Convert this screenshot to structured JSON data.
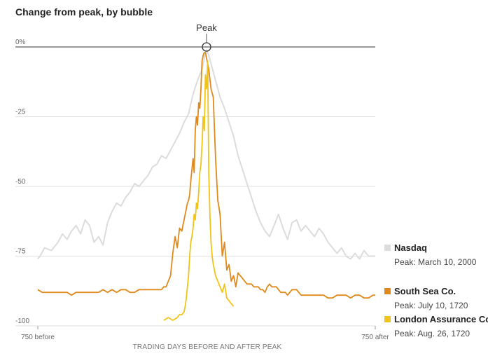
{
  "chart_data": {
    "type": "line",
    "title": "Change from peak, by bubble",
    "xlabel": "TRADING DAYS BEFORE AND AFTER PEAK",
    "ylabel": "",
    "xlim": [
      -750,
      750
    ],
    "ylim": [
      -100,
      0
    ],
    "x_tick_labels": [
      {
        "x": -750,
        "label": "750 before"
      },
      {
        "x": 750,
        "label": "750 after"
      }
    ],
    "y_ticks": [
      {
        "y": 0,
        "label": "0%"
      },
      {
        "y": -25,
        "label": "-25"
      },
      {
        "y": -50,
        "label": "-50"
      },
      {
        "y": -75,
        "label": "-75"
      },
      {
        "y": -100,
        "label": "-100"
      }
    ],
    "grid": true,
    "annotation": {
      "label": "Peak",
      "x": 0,
      "y": 0
    },
    "legend_position": "right",
    "series": [
      {
        "name": "Nasdaq",
        "peak_label": "Peak: March 10, 2000",
        "color": "#dcdcdc",
        "x": [
          -750,
          -740,
          -720,
          -690,
          -660,
          -640,
          -620,
          -600,
          -580,
          -560,
          -540,
          -520,
          -500,
          -480,
          -460,
          -440,
          -420,
          -400,
          -380,
          -360,
          -340,
          -320,
          -300,
          -280,
          -260,
          -240,
          -220,
          -200,
          -180,
          -160,
          -140,
          -120,
          -100,
          -80,
          -60,
          -40,
          -20,
          -10,
          0,
          10,
          20,
          40,
          60,
          80,
          100,
          120,
          140,
          160,
          180,
          200,
          220,
          240,
          260,
          280,
          300,
          320,
          340,
          360,
          380,
          400,
          420,
          440,
          460,
          480,
          500,
          520,
          540,
          560,
          580,
          600,
          620,
          640,
          660,
          680,
          700,
          720,
          740,
          750
        ],
        "y": [
          -76,
          -75,
          -72,
          -73,
          -70,
          -67,
          -69,
          -66,
          -64,
          -67,
          -62,
          -64,
          -70,
          -68,
          -71,
          -63,
          -59,
          -56,
          -57,
          -54,
          -52,
          -49,
          -50,
          -48,
          -46,
          -43,
          -42,
          -39,
          -40,
          -37,
          -34,
          -31,
          -27,
          -24,
          -17,
          -12,
          -8,
          -4,
          -1,
          -3,
          -6,
          -12,
          -18,
          -22,
          -27,
          -32,
          -39,
          -44,
          -49,
          -54,
          -59,
          -63,
          -66,
          -68,
          -64,
          -60,
          -65,
          -69,
          -63,
          -62,
          -66,
          -64,
          -66,
          -68,
          -65,
          -67,
          -70,
          -72,
          -74,
          -72,
          -75,
          -76,
          -74,
          -76,
          -73,
          -75,
          -75,
          -75
        ]
      },
      {
        "name": "South Sea Co.",
        "peak_label": "Peak: July 10, 1720",
        "color": "#e08a1c",
        "x": [
          -750,
          -730,
          -700,
          -680,
          -660,
          -640,
          -620,
          -600,
          -580,
          -560,
          -540,
          -520,
          -500,
          -480,
          -460,
          -440,
          -420,
          -400,
          -380,
          -360,
          -340,
          -320,
          -300,
          -280,
          -260,
          -240,
          -220,
          -200,
          -190,
          -180,
          -170,
          -160,
          -150,
          -140,
          -130,
          -120,
          -110,
          -100,
          -95,
          -90,
          -85,
          -80,
          -75,
          -70,
          -65,
          -60,
          -55,
          -50,
          -45,
          -40,
          -35,
          -30,
          -25,
          -20,
          -15,
          -10,
          -5,
          0,
          5,
          10,
          20,
          30,
          40,
          50,
          60,
          70,
          80,
          90,
          100,
          110,
          120,
          130,
          140,
          150,
          160,
          170,
          180,
          190,
          200,
          210,
          220,
          230,
          240,
          250,
          260,
          270,
          280,
          290,
          300,
          310,
          320,
          330,
          340,
          350,
          360,
          370,
          380,
          390,
          400,
          420,
          440,
          460,
          480,
          500,
          520,
          540,
          560,
          580,
          600,
          620,
          640,
          660,
          680,
          700,
          720,
          740,
          750
        ],
        "y": [
          -87,
          -88,
          -88,
          -88,
          -88,
          -88,
          -88,
          -89,
          -88,
          -88,
          -88,
          -88,
          -88,
          -88,
          -87,
          -88,
          -87,
          -88,
          -87,
          -87,
          -88,
          -88,
          -87,
          -87,
          -87,
          -87,
          -87,
          -87,
          -86,
          -86,
          -84,
          -82,
          -74,
          -68,
          -72,
          -65,
          -66,
          -62,
          -60,
          -58,
          -56,
          -55,
          -53,
          -48,
          -44,
          -40,
          -45,
          -30,
          -25,
          -28,
          -20,
          -22,
          -15,
          -5,
          -3,
          -2,
          -2,
          -4,
          -6,
          -8,
          -15,
          -18,
          -40,
          -55,
          -60,
          -75,
          -70,
          -80,
          -78,
          -84,
          -82,
          -86,
          -81,
          -82,
          -83,
          -84,
          -85,
          -85,
          -85,
          -86,
          -86,
          -86,
          -87,
          -87,
          -88,
          -86,
          -85,
          -86,
          -86,
          -86,
          -87,
          -88,
          -88,
          -88,
          -89,
          -88,
          -87,
          -87,
          -87,
          -89,
          -89,
          -89,
          -89,
          -89,
          -89,
          -90,
          -90,
          -89,
          -89,
          -89,
          -90,
          -89,
          -89,
          -90,
          -90,
          -89,
          -89
        ]
      },
      {
        "name": "London Assurance Co.",
        "peak_label": "Peak: Aug. 26, 1720",
        "color": "#f0c419",
        "x": [
          -190,
          -170,
          -150,
          -130,
          -120,
          -110,
          -100,
          -95,
          -90,
          -85,
          -80,
          -75,
          -70,
          -65,
          -60,
          -55,
          -50,
          -45,
          -40,
          -35,
          -30,
          -25,
          -20,
          -15,
          -10,
          -5,
          0,
          5,
          10,
          15,
          20,
          25,
          30,
          40,
          50,
          60,
          70,
          80,
          90,
          100,
          110,
          120
        ],
        "y": [
          -98,
          -97,
          -98,
          -97,
          -96,
          -96,
          -95,
          -93,
          -90,
          -86,
          -82,
          -75,
          -70,
          -68,
          -65,
          -60,
          -62,
          -56,
          -58,
          -52,
          -45,
          -42,
          -35,
          -25,
          -30,
          -10,
          -15,
          -5,
          -45,
          -60,
          -70,
          -75,
          -78,
          -82,
          -84,
          -86,
          -88,
          -85,
          -90,
          -91,
          -92,
          -93
        ]
      }
    ]
  }
}
